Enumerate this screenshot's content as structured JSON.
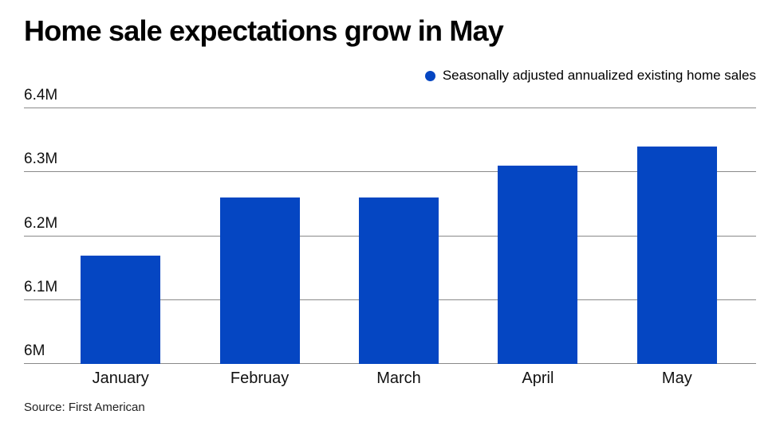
{
  "title": "Home sale expectations grow in May",
  "legend": {
    "label": "Seasonally adjusted annualized existing home sales",
    "marker_color": "#0546C2"
  },
  "source": "Source: First American",
  "chart_data": {
    "type": "bar",
    "title": "Home sale expectations grow in May",
    "series_name": "Seasonally adjusted annualized existing home sales",
    "categories": [
      "January",
      "Februay",
      "March",
      "April",
      "May"
    ],
    "values": [
      6.17,
      6.26,
      6.26,
      6.31,
      6.34
    ],
    "unit": "M",
    "xlabel": "",
    "ylabel": "",
    "ylim": [
      6.0,
      6.4
    ],
    "yticks": [
      6.0,
      6.1,
      6.2,
      6.3,
      6.4
    ],
    "ytick_labels": [
      "6M",
      "6.1M",
      "6.2M",
      "6.3M",
      "6.4M"
    ],
    "grid": true,
    "gridline_color": "#8A8A8A",
    "bar_color": "#0546C2",
    "legend_position": "top-right"
  }
}
